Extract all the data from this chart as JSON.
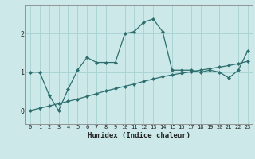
{
  "xlabel": "Humidex (Indice chaleur)",
  "ylabel": "",
  "background_color": "#cce8e8",
  "grid_color": "#aad4d4",
  "line_color": "#2d6e6e",
  "xlim": [
    -0.5,
    23.5
  ],
  "ylim": [
    -0.35,
    2.75
  ],
  "xticks": [
    0,
    1,
    2,
    3,
    4,
    5,
    6,
    7,
    8,
    9,
    10,
    11,
    12,
    13,
    14,
    15,
    16,
    17,
    18,
    19,
    20,
    21,
    22,
    23
  ],
  "yticks": [
    0,
    1,
    2
  ],
  "series1": [
    1.0,
    1.0,
    0.4,
    0.0,
    0.55,
    1.05,
    1.38,
    1.25,
    1.25,
    1.25,
    2.0,
    2.05,
    2.3,
    2.38,
    2.05,
    1.05,
    1.05,
    1.05,
    1.0,
    1.05,
    1.0,
    0.85,
    1.05,
    1.55
  ],
  "series2": [
    0.0,
    0.06,
    0.12,
    0.18,
    0.24,
    0.3,
    0.37,
    0.44,
    0.51,
    0.57,
    0.63,
    0.69,
    0.76,
    0.82,
    0.88,
    0.93,
    0.97,
    1.01,
    1.05,
    1.09,
    1.13,
    1.17,
    1.22,
    1.28
  ],
  "x_values": [
    0,
    1,
    2,
    3,
    4,
    5,
    6,
    7,
    8,
    9,
    10,
    11,
    12,
    13,
    14,
    15,
    16,
    17,
    18,
    19,
    20,
    21,
    22,
    23
  ]
}
